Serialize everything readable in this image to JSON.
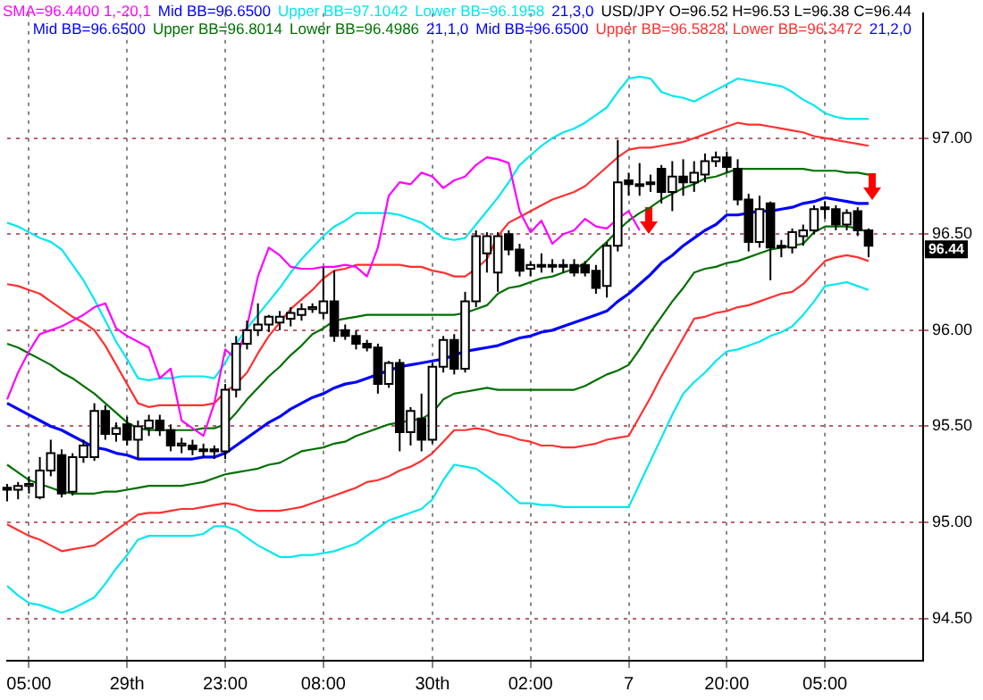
{
  "chart_data": {
    "type": "candlestick",
    "ylim": [
      94.28,
      97.65
    ],
    "categories": [
      null,
      null,
      "05:00",
      null,
      null,
      null,
      null,
      null,
      null,
      null,
      null,
      "29th",
      null,
      null,
      null,
      null,
      null,
      null,
      null,
      null,
      "23:00",
      null,
      null,
      null,
      null,
      null,
      null,
      null,
      null,
      "08:00",
      null,
      null,
      null,
      null,
      null,
      null,
      null,
      null,
      null,
      "30th",
      null,
      null,
      null,
      null,
      null,
      null,
      null,
      null,
      "02:00",
      null,
      null,
      null,
      null,
      null,
      null,
      null,
      null,
      "7",
      null,
      null,
      null,
      null,
      null,
      null,
      null,
      null,
      "20:00",
      null,
      null,
      null,
      null,
      null,
      null,
      null,
      null,
      "05:00",
      null,
      null,
      null,
      null,
      null,
      null,
      null,
      null,
      null
    ],
    "yticks": [
      {
        "value": 94.5,
        "label": "94.50"
      },
      {
        "value": 95,
        "label": "95.00"
      },
      {
        "value": 95.5,
        "label": "95.50"
      },
      {
        "value": 96,
        "label": "96.00"
      },
      {
        "value": 96.5,
        "label": "96.50"
      },
      {
        "value": 97,
        "label": "97.00"
      }
    ],
    "grid": true,
    "legend": "top",
    "marker": "none",
    "series": [
      {
        "type": "candlestick",
        "name": "USD/JPY O=96.52 H=96.53 L=96.38 C=96.44",
        "color": "#000000",
        "colors": [
          "#000000",
          "#ffffff",
          "#ffffff",
          "#ffffff",
          "#ffffff",
          "#000000",
          "#ffffff",
          "#ffffff",
          "#ffffff",
          "#000000",
          "#ffffff",
          "#000000",
          "#ffffff",
          "#ffffff",
          "#000000",
          "#000000",
          "#ffffff",
          "#000000",
          "#ffffff",
          "#000000",
          "#ffffff",
          "#ffffff",
          "#ffffff",
          "#ffffff",
          "#ffffff",
          "#ffffff",
          "#ffffff",
          "#ffffff",
          "#ffffff",
          "#ffffff",
          "#000000",
          "#000000",
          "#000000",
          "#000000",
          "#000000",
          "#ffffff",
          "#000000",
          "#ffffff",
          "#000000",
          "#ffffff",
          "#ffffff",
          "#000000",
          "#ffffff",
          "#ffffff",
          "#ffffff",
          "#ffffff",
          "#000000",
          "#000000",
          "#ffffff",
          "#ffffff",
          "#000000",
          "#ffffff",
          "#000000",
          "#000000",
          "#000000",
          "#ffffff",
          "#ffffff",
          "#000000",
          "#ffffff",
          "#ffffff",
          "#000000",
          "#ffffff",
          "#000000",
          "#ffffff",
          "#ffffff",
          "#ffffff",
          "#000000",
          "#000000",
          "#000000",
          "#ffffff",
          "#000000",
          "#ffffff",
          "#ffffff",
          "#ffffff",
          "#ffffff",
          "#ffffff",
          "#000000",
          "#ffffff",
          "#000000",
          "#000000",
          null,
          null,
          null,
          null,
          null
        ],
        "ohlc": [
          [
            95.18,
            95.2,
            95.11,
            95.17
          ],
          [
            95.17,
            95.21,
            95.12,
            95.19
          ],
          [
            95.19,
            95.24,
            95.15,
            95.2
          ],
          [
            95.13,
            95.34,
            95.12,
            95.27
          ],
          [
            95.27,
            95.43,
            95.24,
            95.36
          ],
          [
            95.35,
            95.38,
            95.13,
            95.15
          ],
          [
            95.16,
            95.36,
            95.14,
            95.34
          ],
          [
            95.34,
            95.43,
            95.31,
            95.4
          ],
          [
            95.34,
            95.62,
            95.32,
            95.58
          ],
          [
            95.58,
            95.61,
            95.43,
            95.46
          ],
          [
            95.46,
            95.52,
            95.42,
            95.49
          ],
          [
            95.51,
            95.55,
            95.4,
            95.43
          ],
          [
            95.43,
            95.53,
            95.33,
            95.5
          ],
          [
            95.49,
            95.56,
            95.45,
            95.53
          ],
          [
            95.53,
            95.56,
            95.45,
            95.48
          ],
          [
            95.48,
            95.51,
            95.37,
            95.4
          ],
          [
            95.4,
            95.44,
            95.36,
            95.41
          ],
          [
            95.4,
            95.43,
            95.35,
            95.38
          ],
          [
            95.38,
            95.41,
            95.34,
            95.38
          ],
          [
            95.38,
            95.4,
            95.33,
            95.37
          ],
          [
            95.37,
            95.72,
            95.33,
            95.69
          ],
          [
            95.69,
            95.97,
            95.65,
            95.93
          ],
          [
            95.93,
            96.05,
            95.9,
            96
          ],
          [
            96,
            96.14,
            95.97,
            96.03
          ],
          [
            96.03,
            96.08,
            95.99,
            96.07
          ],
          [
            96.04,
            96.1,
            96,
            96.07
          ],
          [
            96.06,
            96.12,
            96.02,
            96.09
          ],
          [
            96.08,
            96.14,
            96.05,
            96.11
          ],
          [
            96.11,
            96.14,
            96.09,
            96.12
          ],
          [
            96.09,
            96.33,
            96.06,
            96.15
          ],
          [
            96.15,
            96.31,
            95.94,
            95.97
          ],
          [
            96,
            96.03,
            95.95,
            95.97
          ],
          [
            95.97,
            96,
            95.9,
            95.93
          ],
          [
            95.93,
            95.95,
            95.89,
            95.91
          ],
          [
            95.91,
            95.93,
            95.67,
            95.72
          ],
          [
            95.72,
            95.84,
            95.7,
            95.83
          ],
          [
            95.83,
            95.85,
            95.37,
            95.47
          ],
          [
            95.47,
            95.6,
            95.4,
            95.58
          ],
          [
            95.54,
            95.67,
            95.37,
            95.43
          ],
          [
            95.43,
            95.83,
            95.41,
            95.81
          ],
          [
            95.81,
            95.97,
            95.78,
            95.95
          ],
          [
            95.95,
            95.98,
            95.77,
            95.8
          ],
          [
            95.8,
            96.2,
            95.78,
            96.15
          ],
          [
            96.15,
            96.52,
            96.12,
            96.49
          ],
          [
            96.4,
            96.51,
            96.3,
            96.49
          ],
          [
            96.3,
            96.51,
            96.2,
            96.49
          ],
          [
            96.5,
            96.52,
            96.39,
            96.42
          ],
          [
            96.42,
            96.45,
            96.28,
            96.31
          ],
          [
            96.32,
            96.36,
            96.28,
            96.34
          ],
          [
            96.34,
            96.4,
            96.3,
            96.34
          ],
          [
            96.34,
            96.37,
            96.3,
            96.33
          ],
          [
            96.33,
            96.37,
            96.3,
            96.34
          ],
          [
            96.34,
            96.37,
            96.28,
            96.3
          ],
          [
            96.34,
            96.36,
            96.28,
            96.3
          ],
          [
            96.31,
            96.34,
            96.19,
            96.22
          ],
          [
            96.23,
            96.46,
            96.17,
            96.44
          ],
          [
            96.44,
            96.99,
            96.41,
            96.77
          ],
          [
            96.78,
            96.82,
            96.7,
            96.76
          ],
          [
            96.76,
            96.87,
            96.7,
            96.76
          ],
          [
            96.76,
            96.81,
            96.72,
            96.77
          ],
          [
            96.84,
            96.86,
            96.66,
            96.72
          ],
          [
            96.72,
            96.88,
            96.62,
            96.8
          ],
          [
            96.8,
            96.89,
            96.7,
            96.77
          ],
          [
            96.77,
            96.88,
            96.72,
            96.82
          ],
          [
            96.81,
            96.92,
            96.77,
            96.88
          ],
          [
            96.88,
            96.93,
            96.85,
            96.9
          ],
          [
            96.9,
            96.93,
            96.82,
            96.85
          ],
          [
            96.84,
            96.89,
            96.65,
            96.68
          ],
          [
            96.68,
            96.71,
            96.41,
            96.46
          ],
          [
            96.46,
            96.7,
            96.43,
            96.63
          ],
          [
            96.66,
            96.67,
            96.26,
            96.43
          ],
          [
            96.43,
            96.47,
            96.38,
            96.44
          ],
          [
            96.43,
            96.53,
            96.4,
            96.51
          ],
          [
            96.49,
            96.55,
            96.44,
            96.52
          ],
          [
            96.52,
            96.65,
            96.5,
            96.63
          ],
          [
            96.63,
            96.67,
            96.58,
            96.64
          ],
          [
            96.63,
            96.65,
            96.52,
            96.55
          ],
          [
            96.55,
            96.63,
            96.52,
            96.61
          ],
          [
            96.62,
            96.64,
            96.49,
            96.52
          ],
          [
            96.52,
            96.53,
            96.38,
            96.44
          ],
          null,
          null,
          null,
          null,
          null
        ]
      },
      {
        "type": "line",
        "name": "SMA=96.4400  1,-20,1",
        "color": "#ff00ff",
        "values": [
          95.64,
          95.78,
          95.89,
          95.98,
          96,
          96.02,
          96.05,
          96.08,
          96.12,
          96.14,
          96.01,
          95.97,
          95.94,
          95.91,
          95.75,
          95.8,
          95.53,
          95.49,
          95.45,
          95.62,
          95.9,
          95.85,
          96.02,
          96.28,
          96.43,
          96.39,
          96.33,
          96.32,
          96.32,
          96.33,
          96.33,
          96.34,
          96.33,
          96.28,
          96.43,
          96.7,
          96.77,
          96.76,
          96.82,
          96.8,
          96.74,
          96.78,
          96.8,
          96.86,
          96.9,
          96.89,
          96.87,
          96.62,
          96.51,
          96.57,
          96.45,
          96.5,
          96.52,
          96.58,
          96.54,
          96.53,
          96.58,
          96.62,
          96.52,
          null,
          null,
          null,
          null,
          null,
          null,
          null,
          null,
          null,
          null,
          null,
          null,
          null,
          null,
          null,
          null,
          null,
          null,
          null,
          null,
          null,
          null,
          null,
          null,
          null,
          null
        ]
      },
      {
        "type": "line",
        "name": "Mid BB=96.6500",
        "color": "#0000ff",
        "values": [
          95.62,
          95.59,
          95.56,
          95.53,
          95.5,
          95.48,
          95.45,
          95.42,
          95.39,
          95.38,
          95.36,
          95.35,
          95.33,
          95.33,
          95.33,
          95.33,
          95.33,
          95.33,
          95.34,
          95.34,
          95.36,
          95.4,
          95.44,
          95.48,
          95.52,
          95.55,
          95.59,
          95.62,
          95.65,
          95.67,
          95.7,
          95.72,
          95.73,
          95.75,
          95.77,
          95.79,
          95.81,
          95.82,
          95.83,
          95.84,
          95.85,
          95.87,
          95.89,
          95.9,
          95.91,
          95.92,
          95.94,
          95.96,
          95.97,
          95.99,
          96,
          96.02,
          96.04,
          96.06,
          96.08,
          96.1,
          96.15,
          96.19,
          96.24,
          96.29,
          96.35,
          96.39,
          96.44,
          96.48,
          96.52,
          96.55,
          96.6,
          96.6,
          96.61,
          96.62,
          96.62,
          96.63,
          96.64,
          96.66,
          96.67,
          96.69,
          96.68,
          96.67,
          96.66,
          96.66,
          null,
          null,
          null,
          null,
          null
        ]
      },
      {
        "type": "line",
        "name": "Upper BB=97.1042",
        "color": "#00e8f0",
        "values": [
          96.56,
          96.54,
          96.51,
          96.48,
          96.46,
          96.42,
          96.34,
          96.26,
          96.16,
          96.05,
          95.94,
          95.85,
          95.75,
          95.74,
          95.75,
          95.75,
          95.76,
          95.76,
          95.76,
          95.75,
          95.83,
          95.93,
          96.01,
          96.08,
          96.15,
          96.22,
          96.3,
          96.37,
          96.43,
          96.49,
          96.54,
          96.57,
          96.61,
          96.61,
          96.61,
          96.61,
          96.6,
          96.58,
          96.56,
          96.52,
          96.48,
          96.47,
          96.48,
          96.55,
          96.62,
          96.69,
          96.77,
          96.86,
          96.91,
          96.96,
          97,
          97.03,
          97.05,
          97.08,
          97.12,
          97.16,
          97.24,
          97.31,
          97.32,
          97.31,
          97.24,
          97.22,
          97.21,
          97.19,
          97.22,
          97.25,
          97.28,
          97.31,
          97.3,
          97.29,
          97.28,
          97.27,
          97.24,
          97.2,
          97.17,
          97.13,
          97.11,
          97.1,
          97.1,
          97.1,
          null,
          null,
          null,
          null,
          null
        ]
      },
      {
        "type": "line",
        "name": "Lower BB=96.1958",
        "color": "#00e8f0",
        "values": [
          94.67,
          94.62,
          94.58,
          94.57,
          94.55,
          94.53,
          94.55,
          94.58,
          94.61,
          94.68,
          94.76,
          94.83,
          94.91,
          94.93,
          94.93,
          94.93,
          94.93,
          94.93,
          94.94,
          94.98,
          94.98,
          94.96,
          94.92,
          94.88,
          94.85,
          94.82,
          94.82,
          94.83,
          94.83,
          94.84,
          94.85,
          94.87,
          94.89,
          94.93,
          94.97,
          95.01,
          95.03,
          95.05,
          95.07,
          95.12,
          95.22,
          95.3,
          95.29,
          95.28,
          95.24,
          95.2,
          95.15,
          95.1,
          95.1,
          95.09,
          95.09,
          95.08,
          95.08,
          95.08,
          95.08,
          95.08,
          95.08,
          95.08,
          95.2,
          95.32,
          95.44,
          95.56,
          95.67,
          95.73,
          95.78,
          95.84,
          95.89,
          95.9,
          95.92,
          95.94,
          95.97,
          95.99,
          96.02,
          96.08,
          96.15,
          96.23,
          96.24,
          96.25,
          96.23,
          96.21,
          null,
          null,
          null,
          null,
          null
        ]
      },
      {
        "type": "line",
        "name": "Upper BB=96.8014",
        "color": "#007000",
        "values": [
          95.93,
          95.91,
          95.88,
          95.85,
          95.82,
          95.78,
          95.75,
          95.71,
          95.67,
          95.62,
          95.57,
          95.52,
          95.49,
          95.48,
          95.48,
          95.48,
          95.48,
          95.48,
          95.49,
          95.49,
          95.51,
          95.57,
          95.64,
          95.7,
          95.76,
          95.81,
          95.87,
          95.92,
          95.98,
          96.01,
          96.05,
          96.06,
          96.07,
          96.08,
          96.08,
          96.08,
          96.08,
          96.08,
          96.08,
          96.08,
          96.08,
          96.08,
          96.09,
          96.11,
          96.13,
          96.19,
          96.22,
          96.23,
          96.25,
          96.27,
          96.28,
          96.3,
          96.32,
          96.35,
          96.41,
          96.46,
          96.52,
          96.57,
          96.61,
          96.64,
          96.68,
          96.71,
          96.74,
          96.76,
          96.79,
          96.8,
          96.82,
          96.84,
          96.84,
          96.84,
          96.84,
          96.84,
          96.84,
          96.84,
          96.83,
          96.83,
          96.83,
          96.82,
          96.82,
          96.81,
          null,
          null,
          null,
          null,
          null
        ]
      },
      {
        "type": "line",
        "name": "Lower BB=96.4986",
        "color": "#007000",
        "values": [
          95.3,
          95.26,
          95.22,
          95.2,
          95.18,
          95.16,
          95.15,
          95.15,
          95.15,
          95.16,
          95.16,
          95.17,
          95.18,
          95.19,
          95.19,
          95.19,
          95.19,
          95.2,
          95.21,
          95.23,
          95.25,
          95.26,
          95.27,
          95.28,
          95.3,
          95.31,
          95.34,
          95.37,
          95.38,
          95.39,
          95.41,
          95.42,
          95.45,
          95.47,
          95.49,
          95.51,
          95.52,
          95.53,
          95.54,
          95.57,
          95.64,
          95.67,
          95.68,
          95.69,
          95.7,
          95.69,
          95.69,
          95.69,
          95.69,
          95.69,
          95.69,
          95.69,
          95.69,
          95.71,
          95.74,
          95.77,
          95.79,
          95.82,
          95.9,
          95.99,
          96.07,
          96.15,
          96.22,
          96.3,
          96.32,
          96.33,
          96.35,
          96.36,
          96.38,
          96.4,
          96.42,
          96.43,
          96.44,
          96.45,
          96.51,
          96.54,
          96.54,
          96.54,
          96.53,
          96.51,
          null,
          null,
          null,
          null,
          null
        ]
      },
      {
        "type": "line",
        "name": "Upper BB=96.5828",
        "color": "#ff3030",
        "values": [
          96.24,
          96.23,
          96.21,
          96.19,
          96.15,
          96.11,
          96.07,
          96.04,
          96,
          95.92,
          95.82,
          95.72,
          95.62,
          95.6,
          95.61,
          95.61,
          95.61,
          95.61,
          95.61,
          95.62,
          95.68,
          95.72,
          95.78,
          95.88,
          95.97,
          96.04,
          96.11,
          96.16,
          96.21,
          96.27,
          96.31,
          96.32,
          96.34,
          96.34,
          96.34,
          96.34,
          96.34,
          96.33,
          96.33,
          96.31,
          96.3,
          96.28,
          96.28,
          96.32,
          96.37,
          96.49,
          96.56,
          96.59,
          96.62,
          96.65,
          96.68,
          96.7,
          96.72,
          96.75,
          96.8,
          96.85,
          96.9,
          96.94,
          96.95,
          96.95,
          96.96,
          96.97,
          96.98,
          97,
          97.02,
          97.04,
          97.06,
          97.08,
          97.07,
          97.07,
          97.06,
          97.05,
          97.04,
          97.03,
          97.01,
          97,
          96.99,
          96.98,
          96.97,
          96.96,
          null,
          null,
          null,
          null,
          null
        ]
      },
      {
        "type": "line",
        "name": "Lower BB=96.3472",
        "color": "#ff3030",
        "values": [
          94.99,
          94.96,
          94.93,
          94.91,
          94.88,
          94.85,
          94.86,
          94.87,
          94.88,
          94.92,
          94.96,
          95,
          95.04,
          95.05,
          95.05,
          95.06,
          95.07,
          95.07,
          95.08,
          95.09,
          95.1,
          95.09,
          95.07,
          95.06,
          95.06,
          95.06,
          95.07,
          95.08,
          95.1,
          95.12,
          95.14,
          95.16,
          95.18,
          95.21,
          95.22,
          95.24,
          95.27,
          95.29,
          95.32,
          95.36,
          95.42,
          95.48,
          95.48,
          95.49,
          95.48,
          95.46,
          95.45,
          95.43,
          95.42,
          95.4,
          95.4,
          95.39,
          95.39,
          95.4,
          95.41,
          95.43,
          95.44,
          95.45,
          95.55,
          95.65,
          95.76,
          95.86,
          95.96,
          96.06,
          96.07,
          96.09,
          96.1,
          96.12,
          96.13,
          96.15,
          96.17,
          96.19,
          96.2,
          96.24,
          96.3,
          96.36,
          96.38,
          96.39,
          96.38,
          96.36,
          null,
          null,
          null,
          null,
          null
        ]
      }
    ],
    "annotations": [
      "21,3,0",
      "Mid BB=96.6500",
      "21,1,0",
      "Mid BB=96.6500",
      "21,2,0",
      "96.44"
    ]
  }
}
